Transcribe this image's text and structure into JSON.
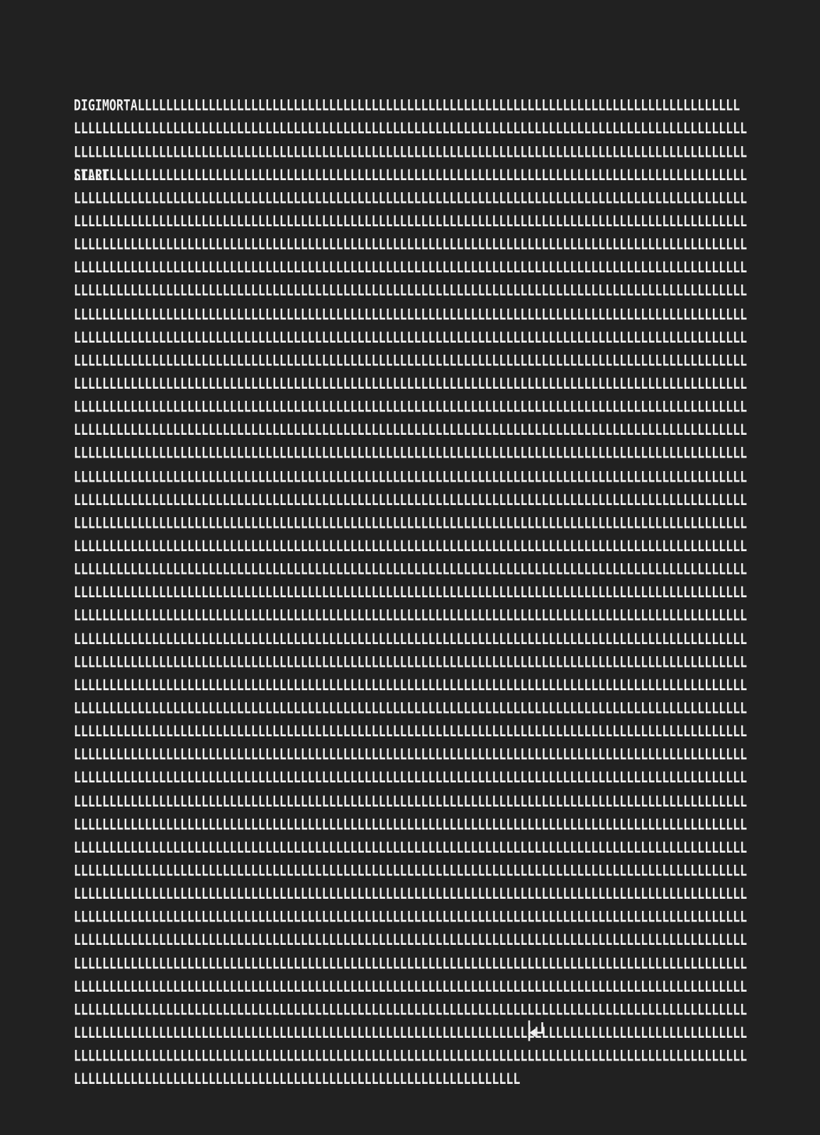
{
  "terminal": {
    "background_color": "#212121",
    "text_color": "#f0f0f0",
    "first_line": "DIGIMORTALLLLLLLLLLLLLLLLLLLLLLLLLLLLLLLLLLLLLLLLLLLLLLLLLLLLLLLLLLLLLLLLLLLLLLLLLLLLLLLLLLLLL",
    "fill_line": "LLLLLLLLLLLLLLLLLLLLLLLLLLLLLLLLLLLLLLLLLLLLLLLLLLLLLLLLLLLLLLLLLLLLLLLLLLLLLLLLLLLLLLLLLLLLLLL",
    "fill_line_repeat": 41,
    "last_line": "LLLLLLLLLLLLLLLLLLLLLLLLLLLLLLLLLLLLLLLLLLLLLLLLLLLLLLLLLLLLLLL",
    "return_icon": "⏎",
    "start_line": "START..."
  }
}
